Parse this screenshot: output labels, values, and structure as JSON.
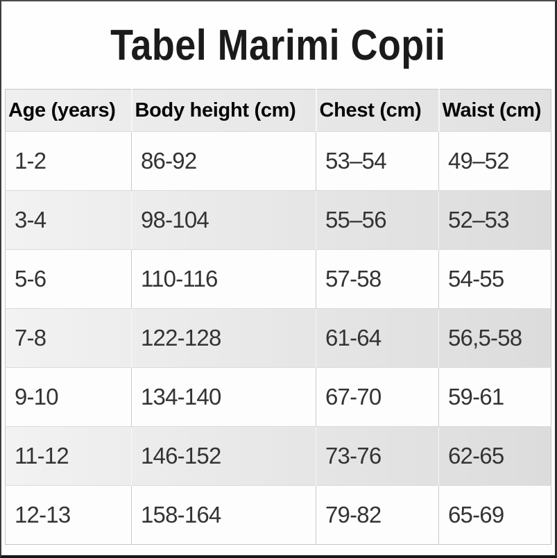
{
  "page": {
    "title": "Tabel Marimi Copii"
  },
  "table": {
    "colors": {
      "header_bg_left": "#efefef",
      "header_bg_right": "#e1e1e1",
      "shaded_row_left": "#f2f2f2",
      "shaded_row_right": "#dcdcdc",
      "row_bg": "#fdfdfd",
      "grid_line": "#cbcbcb",
      "grid_line_light": "#f6f6f6",
      "header_text": "#060606",
      "cell_text": "#333333",
      "frame": "#2d2d2d"
    }
  },
  "chart_data": {
    "type": "table",
    "title": "Tabel Marimi Copii",
    "columns": [
      "Age (years)",
      "Body height (cm)",
      "Chest (cm)",
      "Waist (cm)"
    ],
    "rows": [
      [
        "1-2",
        "86-92",
        "53–54",
        "49–52"
      ],
      [
        "3-4",
        "98-104",
        "55–56",
        "52–53"
      ],
      [
        "5-6",
        "110-116",
        "57-58",
        "54-55"
      ],
      [
        "7-8",
        "122-128",
        "61-64",
        "56,5-58"
      ],
      [
        "9-10",
        "134-140",
        "67-70",
        "59-61"
      ],
      [
        "11-12",
        "146-152",
        "73-76",
        "62-65"
      ],
      [
        "12-13",
        "158-164",
        "79-82",
        "65-69"
      ]
    ],
    "layout": {
      "header_shaded": true,
      "alternating_rows": "even data rows shaded gray",
      "alignment": "left"
    }
  }
}
